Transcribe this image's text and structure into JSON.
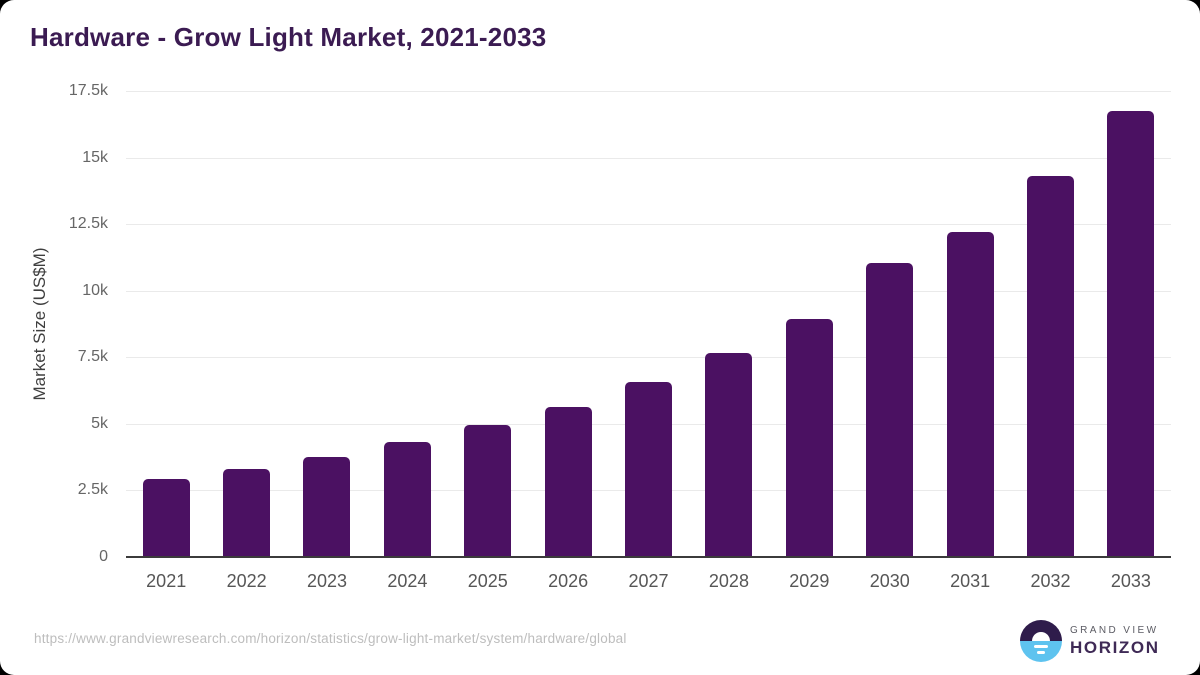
{
  "title": "Hardware - Grow Light Market, 2021-2033",
  "chart_data": {
    "type": "bar",
    "title": "Hardware - Grow Light Market, 2021-2033",
    "categories": [
      "2021",
      "2022",
      "2023",
      "2024",
      "2025",
      "2026",
      "2027",
      "2028",
      "2029",
      "2030",
      "2031",
      "2032",
      "2033"
    ],
    "values": [
      2920,
      3310,
      3750,
      4310,
      4950,
      5650,
      6560,
      7660,
      8930,
      11060,
      12210,
      14300,
      16760
    ],
    "xlabel": "",
    "ylabel": "Market Size (US$M)",
    "ylim": [
      0,
      17500
    ],
    "ytick_labels": [
      "17.5k",
      "15k",
      "12.5k",
      "10k",
      "7.5k",
      "5k",
      "2.5k",
      "0"
    ],
    "ytick_values": [
      17500,
      15000,
      12500,
      10000,
      7500,
      5000,
      2500,
      0
    ],
    "grid": true,
    "legend": false,
    "bar_color": "#4b1162"
  },
  "footer": {
    "source_url": "https://www.grandviewresearch.com/horizon/statistics/grow-light-market/system/hardware/global",
    "logo": {
      "brand_top": "GRAND VIEW",
      "brand_bottom": "HORIZON",
      "icon": "horizon-sun-icon"
    }
  },
  "colors": {
    "bar": "#4b1162",
    "title": "#3b1b52",
    "grid": "#eaeaea",
    "baseline": "#3b3b3b",
    "tick": "#666666",
    "xtick": "#565656",
    "ytitle": "#3f3f3f",
    "url": "#bdbdbd",
    "logo_purple": "#2f1c4b",
    "logo_blue": "#5ec3ef",
    "brand_top_text": "#5b5b63",
    "brand_bottom_text": "#3f2a56"
  }
}
